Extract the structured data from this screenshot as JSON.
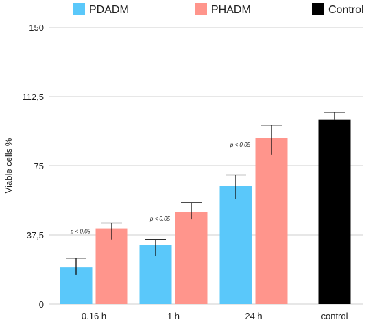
{
  "chart_data": {
    "type": "bar",
    "ylabel": "Viable cells %",
    "ylim": [
      0,
      150
    ],
    "yticks": [
      "0",
      "37,5",
      "75",
      "112,5",
      "150"
    ],
    "ytick_values": [
      0,
      37.5,
      75,
      112.5,
      150
    ],
    "grid": true,
    "legend_position": "top",
    "categories": [
      "0.16 h",
      "1 h",
      "24 h",
      "control"
    ],
    "series": [
      {
        "name": "PDADM",
        "color": "#5AC8FA",
        "values": [
          20,
          32,
          64,
          null
        ],
        "err_low": [
          16,
          26,
          57,
          null
        ],
        "err_high": [
          25,
          35,
          70,
          null
        ]
      },
      {
        "name": "PHADM",
        "color": "#FF958C",
        "values": [
          41,
          50,
          90,
          null
        ],
        "err_low": [
          35,
          46,
          81,
          null
        ],
        "err_high": [
          44,
          55,
          97,
          null
        ]
      },
      {
        "name": "Control",
        "color": "#000000",
        "values": [
          null,
          null,
          null,
          100
        ],
        "err_low": [
          null,
          null,
          null,
          100
        ],
        "err_high": [
          null,
          null,
          null,
          104
        ]
      }
    ],
    "annotations": [
      {
        "category": "0.16 h",
        "text": "p < 0.05",
        "y": 39.5
      },
      {
        "category": "1 h",
        "text": "p < 0.05",
        "y": 46.5
      },
      {
        "category": "24 h",
        "text": "p < 0.05",
        "y": 86.5
      }
    ]
  }
}
